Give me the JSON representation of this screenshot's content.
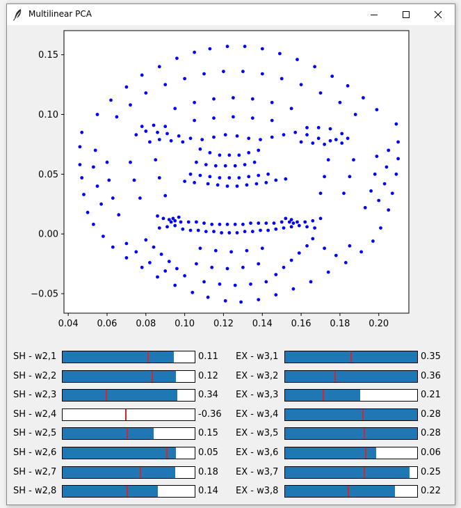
{
  "window": {
    "title": "Multilinear PCA",
    "icon": "feather-icon",
    "controls": [
      "minimize-icon",
      "maximize-icon",
      "close-icon"
    ]
  },
  "colors": {
    "points": "#0000ff",
    "slider_fill": "#1f77b4",
    "slider_marker": "#d62728"
  },
  "chart_data": {
    "type": "scatter",
    "title": "",
    "xlabel": "",
    "ylabel": "",
    "xlim": [
      0.0378,
      0.2155
    ],
    "ylim": [
      -0.0663,
      0.1702
    ],
    "xticks": [
      "0.04",
      "0.06",
      "0.08",
      "0.10",
      "0.12",
      "0.14",
      "0.16",
      "0.18",
      "0.20"
    ],
    "xtick_values": [
      0.04,
      0.06,
      0.08,
      0.1,
      0.12,
      0.14,
      0.16,
      0.18,
      0.2
    ],
    "yticks": [
      "−0.05",
      "0.00",
      "0.05",
      "0.10",
      "0.15"
    ],
    "ytick_values": [
      -0.05,
      0.0,
      0.05,
      0.1,
      0.15
    ],
    "grid": false,
    "series": [
      {
        "marker_color": "#0000ff",
        "points": [
          [
            0.047,
            0.085
          ],
          [
            0.046,
            0.073
          ],
          [
            0.046,
            0.058
          ],
          [
            0.047,
            0.047
          ],
          [
            0.048,
            0.033
          ],
          [
            0.05,
            0.018
          ],
          [
            0.053,
            0.008
          ],
          [
            0.209,
            0.092
          ],
          [
            0.21,
            0.077
          ],
          [
            0.21,
            0.063
          ],
          [
            0.209,
            0.05
          ],
          [
            0.207,
            0.034
          ],
          [
            0.205,
            0.02
          ],
          [
            0.201,
            0.005
          ],
          [
            0.058,
            -0.002
          ],
          [
            0.063,
            -0.011
          ],
          [
            0.07,
            -0.02
          ],
          [
            0.078,
            -0.028
          ],
          [
            0.086,
            -0.036
          ],
          [
            0.095,
            -0.043
          ],
          [
            0.104,
            -0.049
          ],
          [
            0.112,
            -0.053
          ],
          [
            0.121,
            -0.056
          ],
          [
            0.129,
            -0.057
          ],
          [
            0.138,
            -0.055
          ],
          [
            0.147,
            -0.051
          ],
          [
            0.156,
            -0.046
          ],
          [
            0.165,
            -0.04
          ],
          [
            0.174,
            -0.032
          ],
          [
            0.183,
            -0.024
          ],
          [
            0.191,
            -0.015
          ],
          [
            0.197,
            -0.006
          ],
          [
            0.055,
            0.1
          ],
          [
            0.062,
            0.112
          ],
          [
            0.07,
            0.123
          ],
          [
            0.078,
            0.133
          ],
          [
            0.087,
            0.14
          ],
          [
            0.096,
            0.147
          ],
          [
            0.105,
            0.152
          ],
          [
            0.113,
            0.155
          ],
          [
            0.122,
            0.157
          ],
          [
            0.131,
            0.157
          ],
          [
            0.14,
            0.155
          ],
          [
            0.149,
            0.151
          ],
          [
            0.158,
            0.146
          ],
          [
            0.167,
            0.14
          ],
          [
            0.176,
            0.132
          ],
          [
            0.184,
            0.124
          ],
          [
            0.192,
            0.114
          ],
          [
            0.199,
            0.104
          ],
          [
            0.075,
            0.083
          ],
          [
            0.08,
            0.086
          ],
          [
            0.086,
            0.085
          ],
          [
            0.091,
            0.084
          ],
          [
            0.097,
            0.082
          ],
          [
            0.103,
            0.08
          ],
          [
            0.109,
            0.079
          ],
          [
            0.115,
            0.081
          ],
          [
            0.121,
            0.083
          ],
          [
            0.127,
            0.082
          ],
          [
            0.133,
            0.08
          ],
          [
            0.139,
            0.079
          ],
          [
            0.145,
            0.081
          ],
          [
            0.151,
            0.083
          ],
          [
            0.157,
            0.085
          ],
          [
            0.163,
            0.083
          ],
          [
            0.169,
            0.08
          ],
          [
            0.175,
            0.078
          ],
          [
            0.181,
            0.076
          ],
          [
            0.082,
            0.077
          ],
          [
            0.087,
            0.079
          ],
          [
            0.093,
            0.078
          ],
          [
            0.099,
            0.077
          ],
          [
            0.16,
            0.077
          ],
          [
            0.166,
            0.076
          ],
          [
            0.172,
            0.075
          ],
          [
            0.178,
            0.079
          ],
          [
            0.184,
            0.08
          ],
          [
            0.078,
            0.09
          ],
          [
            0.084,
            0.091
          ],
          [
            0.09,
            0.09
          ],
          [
            0.163,
            0.089
          ],
          [
            0.169,
            0.089
          ],
          [
            0.175,
            0.088
          ],
          [
            0.181,
            0.084
          ],
          [
            0.108,
            0.071
          ],
          [
            0.113,
            0.068
          ],
          [
            0.118,
            0.066
          ],
          [
            0.123,
            0.066
          ],
          [
            0.128,
            0.066
          ],
          [
            0.133,
            0.068
          ],
          [
            0.138,
            0.07
          ],
          [
            0.106,
            0.06
          ],
          [
            0.111,
            0.058
          ],
          [
            0.116,
            0.057
          ],
          [
            0.121,
            0.057
          ],
          [
            0.126,
            0.057
          ],
          [
            0.131,
            0.058
          ],
          [
            0.136,
            0.06
          ],
          [
            0.103,
            0.05
          ],
          [
            0.108,
            0.049
          ],
          [
            0.113,
            0.048
          ],
          [
            0.118,
            0.047
          ],
          [
            0.123,
            0.047
          ],
          [
            0.128,
            0.047
          ],
          [
            0.133,
            0.048
          ],
          [
            0.138,
            0.049
          ],
          [
            0.143,
            0.05
          ],
          [
            0.112,
            0.042
          ],
          [
            0.117,
            0.041
          ],
          [
            0.122,
            0.04
          ],
          [
            0.127,
            0.04
          ],
          [
            0.132,
            0.041
          ],
          [
            0.137,
            0.042
          ],
          [
            0.142,
            0.043
          ],
          [
            0.1,
            0.044
          ],
          [
            0.105,
            0.043
          ],
          [
            0.147,
            0.045
          ],
          [
            0.152,
            0.046
          ],
          [
            0.086,
            0.015
          ],
          [
            0.089,
            0.013
          ],
          [
            0.092,
            0.012
          ],
          [
            0.095,
            0.011
          ],
          [
            0.098,
            0.01
          ],
          [
            0.102,
            0.01
          ],
          [
            0.106,
            0.01
          ],
          [
            0.11,
            0.009
          ],
          [
            0.114,
            0.008
          ],
          [
            0.118,
            0.008
          ],
          [
            0.122,
            0.008
          ],
          [
            0.126,
            0.008
          ],
          [
            0.13,
            0.008
          ],
          [
            0.134,
            0.009
          ],
          [
            0.138,
            0.009
          ],
          [
            0.142,
            0.009
          ],
          [
            0.146,
            0.009
          ],
          [
            0.15,
            0.01
          ],
          [
            0.154,
            0.01
          ],
          [
            0.158,
            0.01
          ],
          [
            0.162,
            0.01
          ],
          [
            0.166,
            0.011
          ],
          [
            0.17,
            0.013
          ],
          [
            0.087,
            0.005
          ],
          [
            0.091,
            0.006
          ],
          [
            0.095,
            0.007
          ],
          [
            0.099,
            0.004
          ],
          [
            0.103,
            0.003
          ],
          [
            0.107,
            0.003
          ],
          [
            0.111,
            0.002
          ],
          [
            0.115,
            0.002
          ],
          [
            0.119,
            0.001
          ],
          [
            0.123,
            0.001
          ],
          [
            0.127,
            0.001
          ],
          [
            0.131,
            0.002
          ],
          [
            0.135,
            0.002
          ],
          [
            0.139,
            0.003
          ],
          [
            0.143,
            0.003
          ],
          [
            0.147,
            0.004
          ],
          [
            0.151,
            0.005
          ],
          [
            0.155,
            0.006
          ],
          [
            0.159,
            0.007
          ],
          [
            0.163,
            0.006
          ],
          [
            0.167,
            0.005
          ],
          [
            0.094,
            0.013
          ],
          [
            0.093,
            0.01
          ],
          [
            0.155,
            0.012
          ],
          [
            0.156,
            0.009
          ],
          [
            0.097,
            0.014
          ],
          [
            0.152,
            0.013
          ],
          [
            0.08,
            -0.005
          ],
          [
            0.084,
            -0.011
          ],
          [
            0.088,
            -0.017
          ],
          [
            0.092,
            -0.023
          ],
          [
            0.096,
            -0.029
          ],
          [
            0.1,
            -0.035
          ],
          [
            0.166,
            -0.004
          ],
          [
            0.163,
            -0.01
          ],
          [
            0.159,
            -0.016
          ],
          [
            0.155,
            -0.022
          ],
          [
            0.151,
            -0.028
          ],
          [
            0.147,
            -0.034
          ],
          [
            0.06,
            0.06
          ],
          [
            0.061,
            0.045
          ],
          [
            0.063,
            0.03
          ],
          [
            0.066,
            0.016
          ],
          [
            0.199,
            0.065
          ],
          [
            0.198,
            0.05
          ],
          [
            0.196,
            0.036
          ],
          [
            0.193,
            0.022
          ],
          [
            0.072,
            0.06
          ],
          [
            0.074,
            0.045
          ],
          [
            0.077,
            0.03
          ],
          [
            0.187,
            0.062
          ],
          [
            0.185,
            0.048
          ],
          [
            0.182,
            0.034
          ],
          [
            0.085,
            0.062
          ],
          [
            0.087,
            0.047
          ],
          [
            0.09,
            0.032
          ],
          [
            0.174,
            0.062
          ],
          [
            0.172,
            0.048
          ],
          [
            0.17,
            0.034
          ],
          [
            0.065,
            0.098
          ],
          [
            0.072,
            0.108
          ],
          [
            0.08,
            0.118
          ],
          [
            0.09,
            0.125
          ],
          [
            0.1,
            0.13
          ],
          [
            0.11,
            0.134
          ],
          [
            0.12,
            0.136
          ],
          [
            0.13,
            0.136
          ],
          [
            0.14,
            0.134
          ],
          [
            0.15,
            0.13
          ],
          [
            0.16,
            0.125
          ],
          [
            0.17,
            0.118
          ],
          [
            0.18,
            0.11
          ],
          [
            0.188,
            0.1
          ],
          [
            0.095,
            0.105
          ],
          [
            0.105,
            0.11
          ],
          [
            0.115,
            0.113
          ],
          [
            0.125,
            0.114
          ],
          [
            0.135,
            0.113
          ],
          [
            0.145,
            0.11
          ],
          [
            0.155,
            0.105
          ],
          [
            0.105,
            0.095
          ],
          [
            0.115,
            0.097
          ],
          [
            0.125,
            0.098
          ],
          [
            0.135,
            0.097
          ],
          [
            0.145,
            0.095
          ],
          [
            0.07,
            -0.008
          ],
          [
            0.075,
            -0.015
          ],
          [
            0.082,
            -0.024
          ],
          [
            0.09,
            -0.031
          ],
          [
            0.11,
            -0.04
          ],
          [
            0.118,
            -0.042
          ],
          [
            0.126,
            -0.043
          ],
          [
            0.134,
            -0.042
          ],
          [
            0.142,
            -0.04
          ],
          [
            0.172,
            -0.012
          ],
          [
            0.178,
            -0.018
          ],
          [
            0.185,
            -0.01
          ],
          [
            0.106,
            -0.025
          ],
          [
            0.114,
            -0.028
          ],
          [
            0.122,
            -0.029
          ],
          [
            0.13,
            -0.028
          ],
          [
            0.138,
            -0.025
          ],
          [
            0.108,
            -0.012
          ],
          [
            0.116,
            -0.014
          ],
          [
            0.124,
            -0.015
          ],
          [
            0.132,
            -0.014
          ],
          [
            0.14,
            -0.012
          ],
          [
            0.054,
            0.07
          ],
          [
            0.053,
            0.056
          ],
          [
            0.055,
            0.04
          ],
          [
            0.057,
            0.025
          ],
          [
            0.205,
            0.07
          ],
          [
            0.204,
            0.056
          ],
          [
            0.203,
            0.042
          ],
          [
            0.2,
            0.028
          ]
        ]
      }
    ]
  },
  "sliders": {
    "left": [
      {
        "label": "SH - w2,1",
        "value": "0.11",
        "fill": 0.84,
        "marker": 0.65
      },
      {
        "label": "SH - w2,2",
        "value": "0.12",
        "fill": 0.86,
        "marker": 0.68
      },
      {
        "label": "SH - w2,3",
        "value": "0.34",
        "fill": 0.87,
        "marker": 0.33
      },
      {
        "label": "SH - w2,4",
        "value": "-0.36",
        "fill": 0.0,
        "marker": 0.48
      },
      {
        "label": "SH - w2,5",
        "value": "0.15",
        "fill": 0.69,
        "marker": 0.49
      },
      {
        "label": "SH - w2,6",
        "value": "0.05",
        "fill": 0.86,
        "marker": 0.79
      },
      {
        "label": "SH - w2,7",
        "value": "0.18",
        "fill": 0.85,
        "marker": 0.59
      },
      {
        "label": "SH - w2,8",
        "value": "0.14",
        "fill": 0.72,
        "marker": 0.49
      }
    ],
    "right": [
      {
        "label": "EX - w3,1",
        "value": "0.35",
        "fill": 1.0,
        "marker": 0.5
      },
      {
        "label": "EX - w3,2",
        "value": "0.36",
        "fill": 1.0,
        "marker": 0.38
      },
      {
        "label": "EX - w3,3",
        "value": "0.21",
        "fill": 0.57,
        "marker": 0.29
      },
      {
        "label": "EX - w3,4",
        "value": "0.28",
        "fill": 1.0,
        "marker": 0.59
      },
      {
        "label": "EX - w3,5",
        "value": "0.28",
        "fill": 1.0,
        "marker": 0.6
      },
      {
        "label": "EX - w3,6",
        "value": "0.06",
        "fill": 0.69,
        "marker": 0.61
      },
      {
        "label": "EX - w3,7",
        "value": "0.25",
        "fill": 0.94,
        "marker": 0.6
      },
      {
        "label": "EX - w3,8",
        "value": "0.22",
        "fill": 0.83,
        "marker": 0.48
      }
    ]
  }
}
